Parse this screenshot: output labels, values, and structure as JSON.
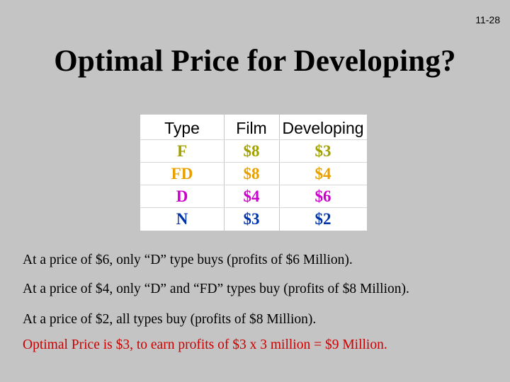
{
  "slide": {
    "number": "11-28",
    "title": "Optimal Price for Developing?"
  },
  "table": {
    "headers": [
      "Type",
      "Film",
      "Developing"
    ],
    "rows": [
      {
        "type": "F",
        "film": "$8",
        "developing": "$3",
        "color": "#a0a000"
      },
      {
        "type": "FD",
        "film": "$8",
        "developing": "$4",
        "color": "#e8a000"
      },
      {
        "type": "D",
        "film": "$4",
        "developing": "$6",
        "color": "#cc00cc"
      },
      {
        "type": "N",
        "film": "$3",
        "developing": "$2",
        "color": "#0033aa"
      }
    ]
  },
  "notes": [
    "At a price of $6, only “D” type buys (profits of $6 Million).",
    "At a price of $4, only “D” and “FD” types buy (profits of $8 Million).",
    "At a price of $2, all types buy (profits of $8 Million).",
    "Optimal Price is $3, to earn profits of $3 x 3 million = $9 Million."
  ],
  "colors": {
    "background": "#c4c4c4",
    "table_background": "#ffffff",
    "highlight_note": "#cc0000"
  }
}
